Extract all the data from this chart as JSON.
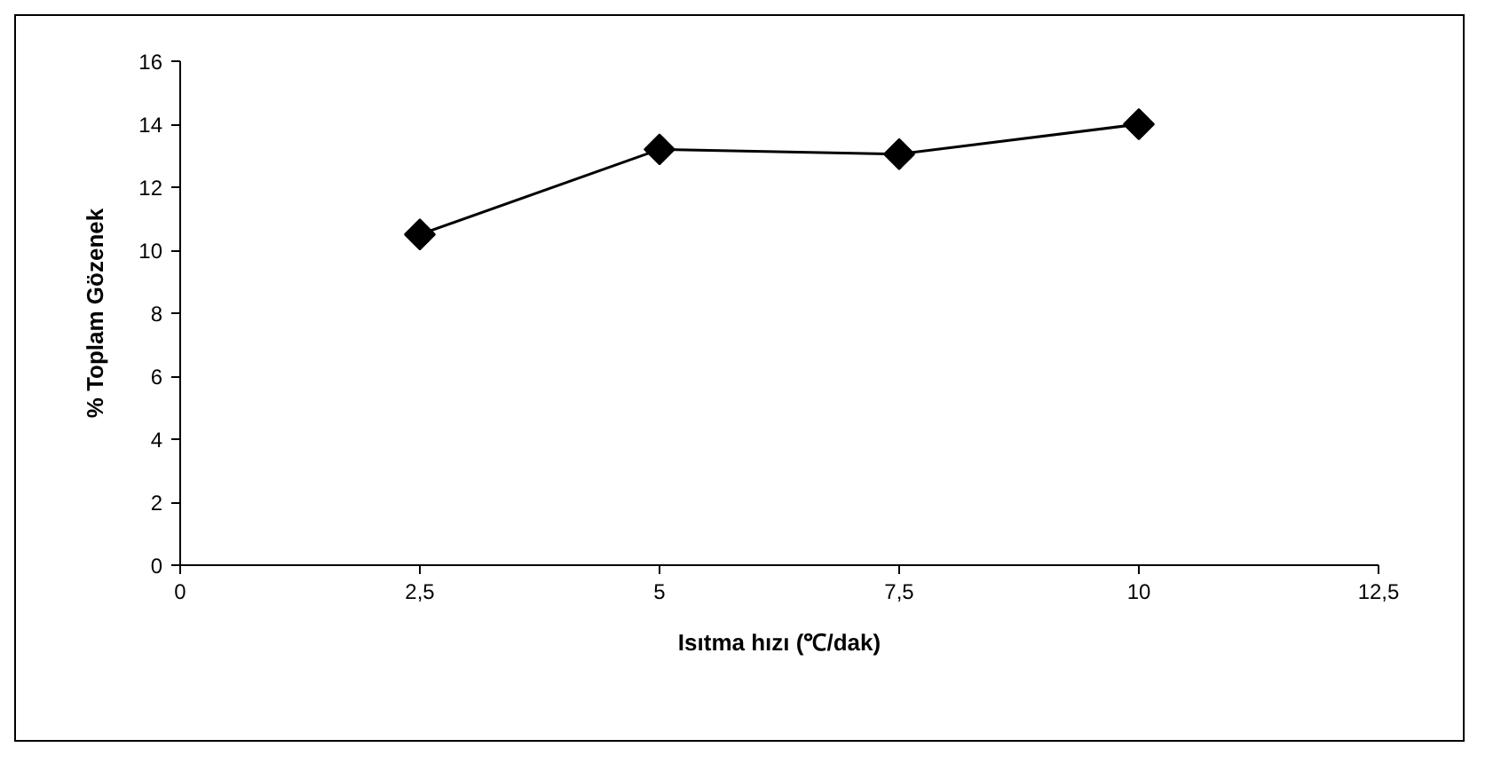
{
  "chart_data": {
    "type": "line",
    "xlabel": "Isıtma hızı (℃/dak)",
    "ylabel": "% Toplam Gözenek",
    "x": [
      2.5,
      5,
      7.5,
      10
    ],
    "series": [
      {
        "color": "#000000",
        "values": [
          10.5,
          13.2,
          13.05,
          14.0
        ]
      }
    ],
    "xlim": [
      0,
      12.5
    ],
    "xticks": [
      0,
      {
        "value": 2.5,
        "label": "2,5"
      },
      5,
      {
        "value": 7.5,
        "label": "7,5"
      },
      10,
      {
        "value": 12.5,
        "label": "12,5"
      }
    ],
    "ylim": [
      0,
      16
    ],
    "yticks": [
      0,
      2,
      4,
      6,
      8,
      10,
      12,
      14,
      16
    ],
    "grid": false,
    "marker": "diamond",
    "line_style": "solid"
  }
}
